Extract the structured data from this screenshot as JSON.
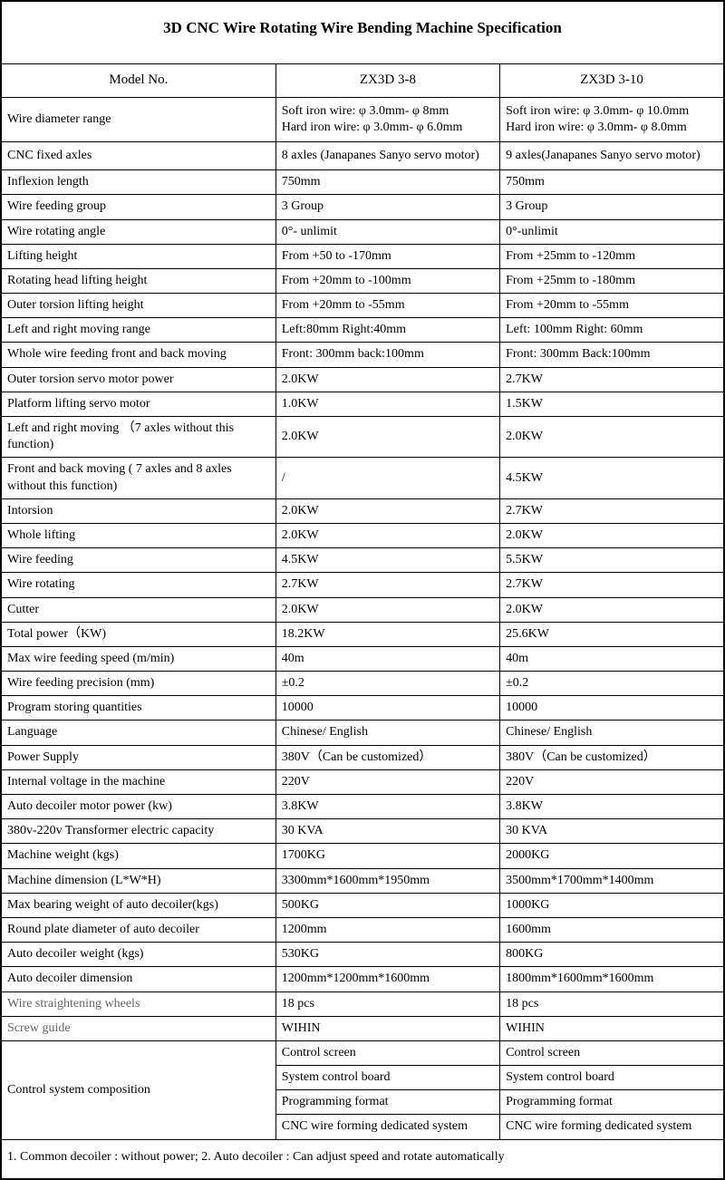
{
  "title": "3D CNC Wire Rotating Wire Bending Machine Specification",
  "columns": {
    "label": "Model No.",
    "a": "ZX3D 3-8",
    "b": "ZX3D 3-10"
  },
  "rows": [
    {
      "label": "Wire diameter range",
      "a": "Soft iron wire: φ 3.0mm- φ 8mm\nHard iron wire: φ 3.0mm- φ 6.0mm",
      "b": "Soft iron wire: φ 3.0mm- φ 10.0mm\nHard iron wire: φ 3.0mm- φ 8.0mm",
      "tall": true
    },
    {
      "label": "CNC fixed axles",
      "a": "8 axles (Janapanes Sanyo servo motor)",
      "b": "9 axles(Janapanes Sanyo servo motor)",
      "tall": true
    },
    {
      "label": "Inflexion length",
      "a": "750mm",
      "b": "750mm"
    },
    {
      "label": "Wire feeding group",
      "a": "3 Group",
      "b": "3 Group"
    },
    {
      "label": "Wire rotating angle",
      "a": "0°- unlimit",
      "b": "0°-unlimit"
    },
    {
      "label": "Lifting height",
      "a": "From +50 to -170mm",
      "b": "From +25mm to -120mm"
    },
    {
      "label": "Rotating head lifting height",
      "a": "From +20mm to -100mm",
      "b": "From +25mm to -180mm"
    },
    {
      "label": "Outer torsion lifting height",
      "a": "From +20mm to -55mm",
      "b": "From +20mm to -55mm"
    },
    {
      "label": "Left and right moving range",
      "a": "Left:80mm   Right:40mm",
      "b": "Left: 100mm  Right: 60mm"
    },
    {
      "label": "Whole wire feeding front and back moving",
      "a": "Front: 300mm  back:100mm",
      "b": "Front: 300mm  Back:100mm"
    },
    {
      "label": "Outer torsion servo motor power",
      "a": "2.0KW",
      "b": "2.7KW"
    },
    {
      "label": "Platform lifting servo motor",
      "a": "1.0KW",
      "b": "1.5KW"
    },
    {
      "label": "Left and right moving （7 axles without this function)",
      "a": "2.0KW",
      "b": "2.0KW"
    },
    {
      "label": "Front and back moving ( 7 axles and 8 axles without this function)",
      "a": "/",
      "b": "4.5KW"
    },
    {
      "label": " Intorsion",
      "a": "2.0KW",
      "b": "2.7KW"
    },
    {
      "label": "Whole lifting",
      "a": "2.0KW",
      "b": "2.0KW"
    },
    {
      "label": "Wire feeding",
      "a": "4.5KW",
      "b": "5.5KW"
    },
    {
      "label": "Wire rotating",
      "a": "2.7KW",
      "b": "2.7KW"
    },
    {
      "label": "Cutter",
      "a": "2.0KW",
      "b": "2.0KW"
    },
    {
      "label": "Total power（KW)",
      "a": "18.2KW",
      "b": "25.6KW"
    },
    {
      "label": "Max wire feeding speed (m/min)",
      "a": "40m",
      "b": "40m"
    },
    {
      "label": "Wire feeding precision (mm)",
      "a": "±0.2",
      "b": "±0.2"
    },
    {
      "label": "Program storing quantities",
      "a": "10000",
      "b": "10000"
    },
    {
      "label": "Language",
      "a": "Chinese/ English",
      "b": "Chinese/ English"
    },
    {
      "label": "Power Supply",
      "a": "380V（Can be customized）",
      "b": "380V（Can be customized）"
    },
    {
      "label": "Internal voltage in the machine",
      "a": "220V",
      "b": "220V"
    },
    {
      "label": "Auto decoiler motor power (kw)",
      "a": "3.8KW",
      "b": "3.8KW"
    },
    {
      "label": "380v-220v Transformer electric capacity",
      "a": "30 KVA",
      "b": "30 KVA"
    },
    {
      "label": "Machine weight (kgs)",
      "a": "1700KG",
      "b": "2000KG"
    },
    {
      "label": "Machine dimension (L*W*H)",
      "a": "3300mm*1600mm*1950mm",
      "b": "3500mm*1700mm*1400mm"
    },
    {
      "label": "Max bearing weight of auto decoiler(kgs)",
      "a": "500KG",
      "b": "1000KG"
    },
    {
      "label": "Round plate diameter of auto decoiler",
      "a": "1200mm",
      "b": "1600mm"
    },
    {
      "label": "Auto decoiler weight (kgs)",
      "a": "530KG",
      "b": "800KG"
    },
    {
      "label": "Auto decoiler dimension",
      "a": "1200mm*1200mm*1600mm",
      "b": "1800mm*1600mm*1600mm"
    },
    {
      "label": "Wire straightening wheels",
      "a": "18 pcs",
      "b": "18 pcs",
      "grey": true
    },
    {
      "label": "Screw guide",
      "a": "WIHIN",
      "b": "WIHIN",
      "grey": true
    }
  ],
  "control_section": {
    "label": "Control system composition",
    "items": [
      {
        "a": "Control screen",
        "b": "Control screen"
      },
      {
        "a": "System control board",
        "b": "System control board"
      },
      {
        "a": "Programming format",
        "b": "Programming format"
      },
      {
        "a": "CNC wire forming dedicated system",
        "b": "CNC wire forming dedicated system"
      }
    ]
  },
  "footer_note": "1. Common decoiler : without power; 2. Auto decoiler : Can adjust speed and rotate automatically"
}
